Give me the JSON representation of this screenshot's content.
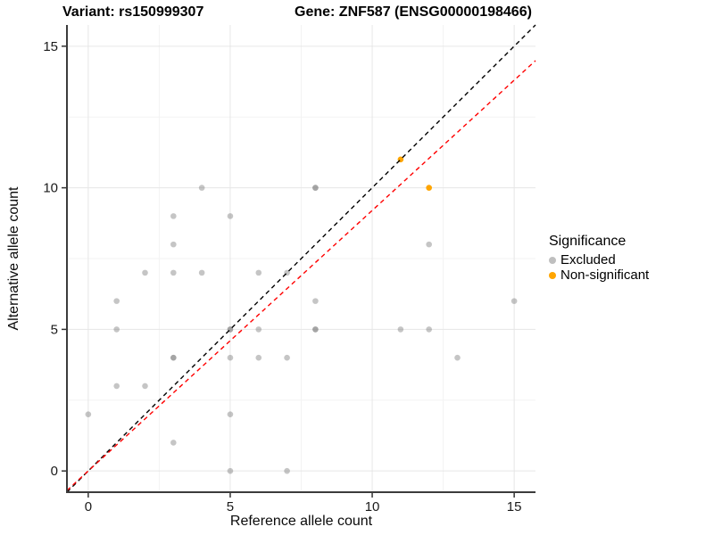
{
  "titles": {
    "variant": "Variant: rs150999307",
    "gene": "Gene: ZNF587 (ENSG00000198466)"
  },
  "legend": {
    "title": "Significance",
    "items": [
      {
        "label": "Excluded",
        "color": "rgba(127,127,127,0.5)"
      },
      {
        "label": "Non-significant",
        "color": "#FFA500"
      }
    ]
  },
  "chart_data": {
    "type": "scatter",
    "title": "",
    "xlabel": "Reference allele count",
    "ylabel": "Alternative allele count",
    "xlim": [
      -0.75,
      15.75
    ],
    "ylim": [
      -0.75,
      15.75
    ],
    "x_ticks": [
      0,
      5,
      10,
      15
    ],
    "y_ticks": [
      0,
      5,
      10,
      15
    ],
    "minor_breaks": [
      2.5,
      7.5,
      12.5
    ],
    "grid": true,
    "legend_position": "right",
    "point_format": "x = reference allele count, y = alternative allele count, n = overplotted point count (darker dot)",
    "series": [
      {
        "name": "Excluded",
        "color": "rgba(127,127,127,0.45)",
        "points": [
          {
            "x": 0,
            "y": 2,
            "n": 1
          },
          {
            "x": 1,
            "y": 3,
            "n": 1
          },
          {
            "x": 1,
            "y": 5,
            "n": 1
          },
          {
            "x": 1,
            "y": 6,
            "n": 1
          },
          {
            "x": 2,
            "y": 3,
            "n": 1
          },
          {
            "x": 2,
            "y": 7,
            "n": 1
          },
          {
            "x": 3,
            "y": 1,
            "n": 1
          },
          {
            "x": 3,
            "y": 4,
            "n": 2
          },
          {
            "x": 3,
            "y": 7,
            "n": 1
          },
          {
            "x": 3,
            "y": 8,
            "n": 1
          },
          {
            "x": 3,
            "y": 9,
            "n": 1
          },
          {
            "x": 4,
            "y": 7,
            "n": 1
          },
          {
            "x": 4,
            "y": 10,
            "n": 1
          },
          {
            "x": 5,
            "y": 0,
            "n": 1
          },
          {
            "x": 5,
            "y": 2,
            "n": 1
          },
          {
            "x": 5,
            "y": 4,
            "n": 1
          },
          {
            "x": 5,
            "y": 5,
            "n": 2
          },
          {
            "x": 5,
            "y": 9,
            "n": 1
          },
          {
            "x": 6,
            "y": 4,
            "n": 1
          },
          {
            "x": 6,
            "y": 5,
            "n": 1
          },
          {
            "x": 6,
            "y": 7,
            "n": 1
          },
          {
            "x": 7,
            "y": 0,
            "n": 1
          },
          {
            "x": 7,
            "y": 4,
            "n": 1
          },
          {
            "x": 7,
            "y": 7,
            "n": 1
          },
          {
            "x": 8,
            "y": 5,
            "n": 2
          },
          {
            "x": 8,
            "y": 6,
            "n": 1
          },
          {
            "x": 8,
            "y": 10,
            "n": 2
          },
          {
            "x": 11,
            "y": 5,
            "n": 1
          },
          {
            "x": 12,
            "y": 5,
            "n": 1
          },
          {
            "x": 12,
            "y": 8,
            "n": 1
          },
          {
            "x": 13,
            "y": 4,
            "n": 1
          },
          {
            "x": 15,
            "y": 6,
            "n": 1
          }
        ]
      },
      {
        "name": "Non-significant",
        "color": "#FFA500",
        "points": [
          {
            "x": 11,
            "y": 11,
            "n": 1
          },
          {
            "x": 12,
            "y": 10,
            "n": 1
          }
        ]
      }
    ],
    "lines": [
      {
        "name": "identity-line",
        "slope": 1.0,
        "intercept": 0,
        "color": "#000000",
        "style": "dashed"
      },
      {
        "name": "ratio-line",
        "slope": 0.92,
        "intercept": 0,
        "color": "#FF0000",
        "style": "dashed"
      }
    ]
  }
}
